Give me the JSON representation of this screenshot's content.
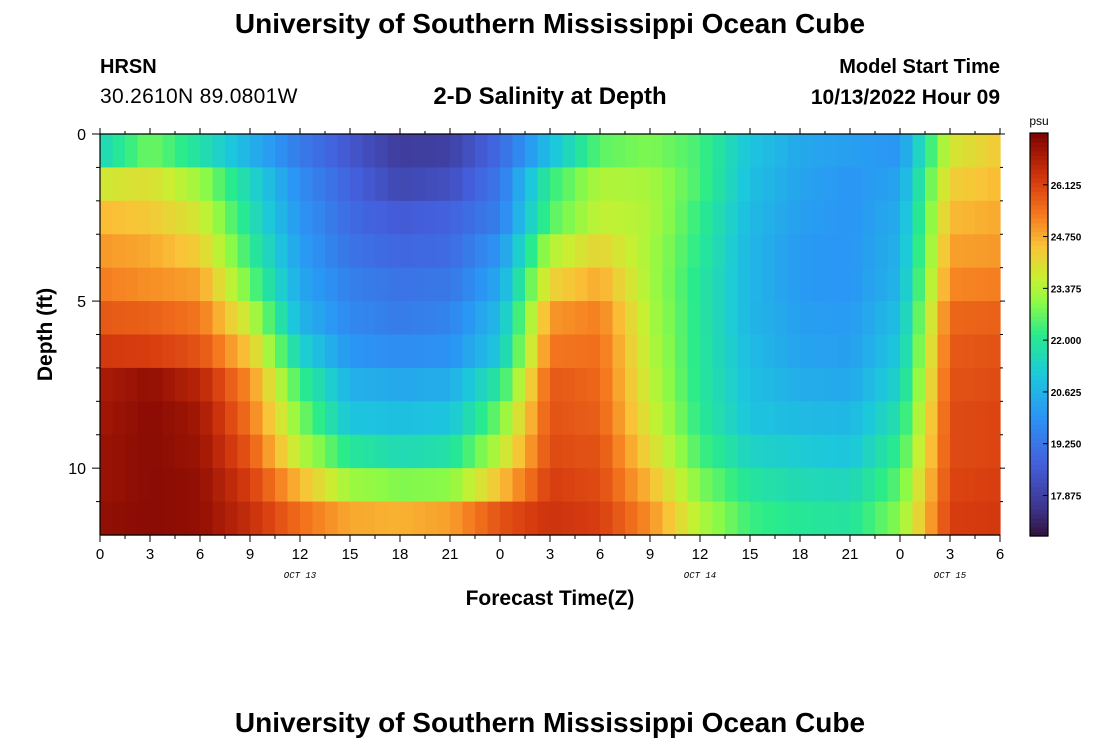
{
  "header": {
    "title": "University of Southern Mississippi Ocean Cube",
    "station": "HRSN",
    "coordinates": "30.2610N  89.0801W",
    "chart_title": "2-D Salinity at Depth",
    "model_start_label": "Model Start Time",
    "model_start_value": "10/13/2022 Hour 09"
  },
  "footer": {
    "title": "University of Southern Mississippi Ocean Cube"
  },
  "chart_data": {
    "type": "heatmap",
    "title": "2-D Salinity at Depth",
    "xlabel": "Forecast Time(Z)",
    "ylabel": "Depth (ft)",
    "xlim": [
      0,
      54
    ],
    "ylim": [
      0,
      12
    ],
    "x_ticks": [
      0,
      3,
      6,
      9,
      12,
      15,
      18,
      21,
      24,
      27,
      30,
      33,
      36,
      39,
      42,
      45,
      48,
      51,
      54
    ],
    "x_tick_labels": [
      "0",
      "3",
      "6",
      "9",
      "12",
      "15",
      "18",
      "21",
      "0",
      "3",
      "6",
      "9",
      "12",
      "15",
      "18",
      "21",
      "0",
      "3",
      "6"
    ],
    "date_labels": [
      {
        "x": 12,
        "text": "OCT 13"
      },
      {
        "x": 36,
        "text": "OCT 14"
      },
      {
        "x": 51,
        "text": "OCT 15"
      }
    ],
    "y_ticks": [
      0,
      5,
      10
    ],
    "y_tick_labels": [
      "0",
      "5",
      "10"
    ],
    "colorbar": {
      "unit": "psu",
      "range": [
        16.8,
        27.5
      ],
      "tick_values": [
        26.125,
        24.75,
        23.375,
        22.0,
        20.625,
        19.25,
        17.875
      ],
      "tick_labels": [
        "26.125",
        "24.750",
        "23.375",
        "22.000",
        "20.625",
        "19.250",
        "17.875"
      ]
    },
    "depths": [
      0.5,
      1.5,
      2.5,
      3.5,
      4.5,
      5.5,
      6.5,
      7.5,
      8.5,
      9.5,
      10.5,
      11.5
    ],
    "times": [
      0,
      3,
      6,
      9,
      12,
      15,
      18,
      21,
      24,
      27,
      30,
      33,
      36,
      39,
      42,
      45,
      48,
      51,
      54
    ],
    "salinity": [
      [
        21.5,
        22.8,
        21.8,
        20.6,
        19.4,
        18.5,
        17.8,
        17.9,
        19.0,
        20.9,
        22.6,
        22.9,
        22.4,
        21.0,
        20.4,
        20.2,
        20.0,
        23.8,
        24.4
      ],
      [
        23.8,
        24.0,
        23.2,
        21.5,
        19.8,
        18.8,
        18.1,
        18.3,
        19.3,
        22.2,
        23.4,
        23.3,
        22.4,
        20.9,
        20.3,
        20.0,
        20.3,
        24.3,
        24.6
      ],
      [
        24.6,
        24.4,
        23.8,
        21.8,
        20.0,
        19.0,
        18.6,
        18.8,
        19.5,
        22.5,
        23.6,
        23.4,
        22.2,
        20.8,
        20.2,
        20.0,
        20.5,
        24.6,
        24.8
      ],
      [
        25.0,
        24.8,
        24.3,
        22.2,
        20.2,
        19.2,
        18.9,
        19.0,
        20.0,
        23.4,
        24.2,
        23.3,
        22.1,
        20.7,
        20.1,
        20.0,
        20.6,
        24.9,
        25.0
      ],
      [
        25.3,
        25.1,
        24.9,
        22.7,
        20.4,
        19.5,
        19.2,
        19.3,
        20.4,
        24.2,
        24.8,
        23.3,
        22.0,
        20.7,
        20.1,
        20.0,
        20.7,
        25.2,
        25.3
      ],
      [
        25.8,
        25.7,
        25.4,
        23.6,
        20.7,
        19.7,
        19.4,
        19.6,
        20.8,
        25.0,
        25.3,
        23.4,
        22.0,
        20.7,
        20.2,
        20.1,
        20.9,
        25.6,
        25.7
      ],
      [
        26.3,
        26.2,
        25.9,
        24.4,
        21.4,
        20.0,
        19.8,
        19.9,
        21.1,
        25.4,
        25.5,
        23.5,
        22.0,
        20.8,
        20.3,
        20.2,
        21.1,
        25.8,
        25.9
      ],
      [
        26.9,
        27.2,
        26.7,
        25.1,
        22.3,
        20.6,
        20.4,
        20.5,
        22.0,
        25.8,
        25.6,
        23.6,
        22.0,
        20.9,
        20.5,
        20.4,
        21.4,
        25.9,
        26.0
      ],
      [
        27.0,
        27.3,
        27.0,
        25.4,
        22.9,
        21.0,
        20.9,
        21.0,
        22.8,
        25.9,
        25.7,
        23.8,
        22.1,
        21.0,
        20.8,
        20.7,
        21.8,
        26.0,
        26.1
      ],
      [
        27.1,
        27.3,
        27.1,
        25.8,
        23.5,
        22.0,
        21.6,
        21.8,
        23.5,
        26.0,
        25.9,
        24.1,
        22.4,
        21.4,
        21.2,
        21.0,
        22.2,
        26.0,
        26.1
      ],
      [
        27.1,
        27.3,
        27.2,
        26.2,
        24.6,
        23.2,
        22.9,
        23.0,
        24.5,
        26.2,
        26.0,
        24.6,
        22.9,
        21.9,
        21.6,
        21.5,
        22.6,
        26.1,
        26.2
      ],
      [
        27.2,
        27.3,
        27.2,
        26.5,
        25.5,
        24.8,
        24.7,
        24.9,
        25.9,
        26.4,
        26.2,
        25.1,
        23.4,
        22.3,
        22.0,
        21.9,
        23.0,
        26.2,
        26.3
      ]
    ]
  }
}
